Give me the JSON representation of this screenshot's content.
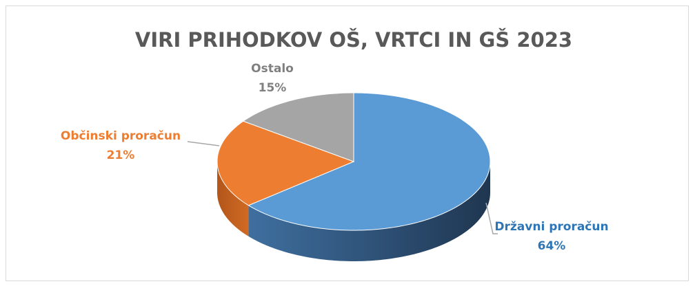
{
  "chart_data": {
    "type": "pie",
    "title": "VIRI PRIHODKOV OŠ, VRTCI IN GŠ 2023",
    "categories": [
      "Državni proračun",
      "Občinski proračun",
      "Ostalo"
    ],
    "values": [
      64,
      21,
      15
    ],
    "value_labels": [
      "64%",
      "21%",
      "15%"
    ],
    "colors": [
      "#5b9bd5",
      "#ed7d31",
      "#a5a5a5"
    ]
  }
}
